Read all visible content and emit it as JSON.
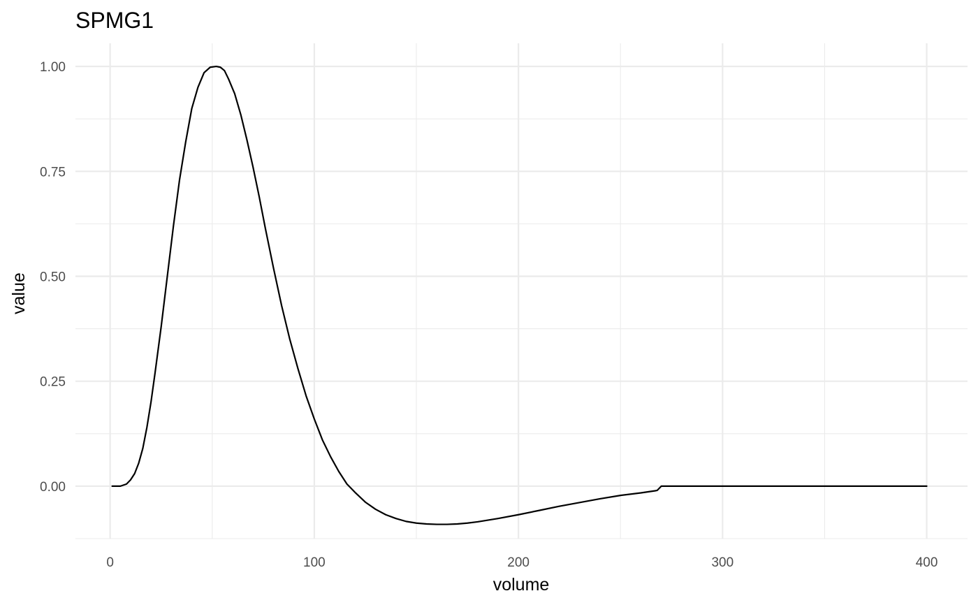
{
  "chart_data": {
    "type": "line",
    "title": "SPMG1",
    "xlabel": "volume",
    "ylabel": "value",
    "xlim": [
      -17,
      420
    ],
    "ylim": [
      -0.125,
      1.055
    ],
    "x_ticks": [
      0,
      100,
      200,
      300,
      400
    ],
    "x_tick_labels": [
      "0",
      "100",
      "200",
      "300",
      "400"
    ],
    "y_ticks": [
      0,
      0.25,
      0.5,
      0.75,
      1.0
    ],
    "y_tick_labels": [
      "0.00",
      "0.25",
      "0.50",
      "0.75",
      "1.00"
    ],
    "x_minor_ticks": [
      50,
      150,
      250,
      350
    ],
    "y_minor_ticks": [
      -0.125,
      0.125,
      0.375,
      0.625,
      0.875
    ],
    "grid": true,
    "line_color": "#000000",
    "series": [
      {
        "name": "SPMG1",
        "x": [
          1,
          5,
          8,
          10,
          12,
          14,
          16,
          18,
          20,
          22,
          25,
          28,
          31,
          34,
          37,
          40,
          43,
          46,
          49,
          52,
          54,
          56,
          58,
          61,
          64,
          67,
          70,
          73,
          76,
          80,
          84,
          88,
          92,
          96,
          100,
          104,
          108,
          112,
          116,
          120,
          125,
          130,
          135,
          140,
          145,
          150,
          155,
          160,
          165,
          170,
          175,
          180,
          190,
          200,
          210,
          220,
          230,
          240,
          250,
          260,
          267,
          268,
          270,
          280,
          300,
          320,
          340,
          360,
          380,
          400
        ],
        "values": [
          0.0,
          0.0,
          0.005,
          0.015,
          0.03,
          0.055,
          0.09,
          0.14,
          0.2,
          0.27,
          0.38,
          0.5,
          0.62,
          0.73,
          0.82,
          0.9,
          0.95,
          0.985,
          0.998,
          1.0,
          0.998,
          0.99,
          0.97,
          0.935,
          0.885,
          0.825,
          0.76,
          0.69,
          0.615,
          0.52,
          0.43,
          0.35,
          0.28,
          0.215,
          0.16,
          0.11,
          0.07,
          0.035,
          0.005,
          -0.015,
          -0.038,
          -0.055,
          -0.068,
          -0.077,
          -0.084,
          -0.088,
          -0.09,
          -0.091,
          -0.091,
          -0.09,
          -0.088,
          -0.085,
          -0.077,
          -0.068,
          -0.058,
          -0.048,
          -0.039,
          -0.03,
          -0.022,
          -0.016,
          -0.011,
          -0.01,
          0.0,
          0.0,
          0.0,
          0.0,
          0.0,
          0.0,
          0.0,
          0.0
        ]
      }
    ]
  }
}
